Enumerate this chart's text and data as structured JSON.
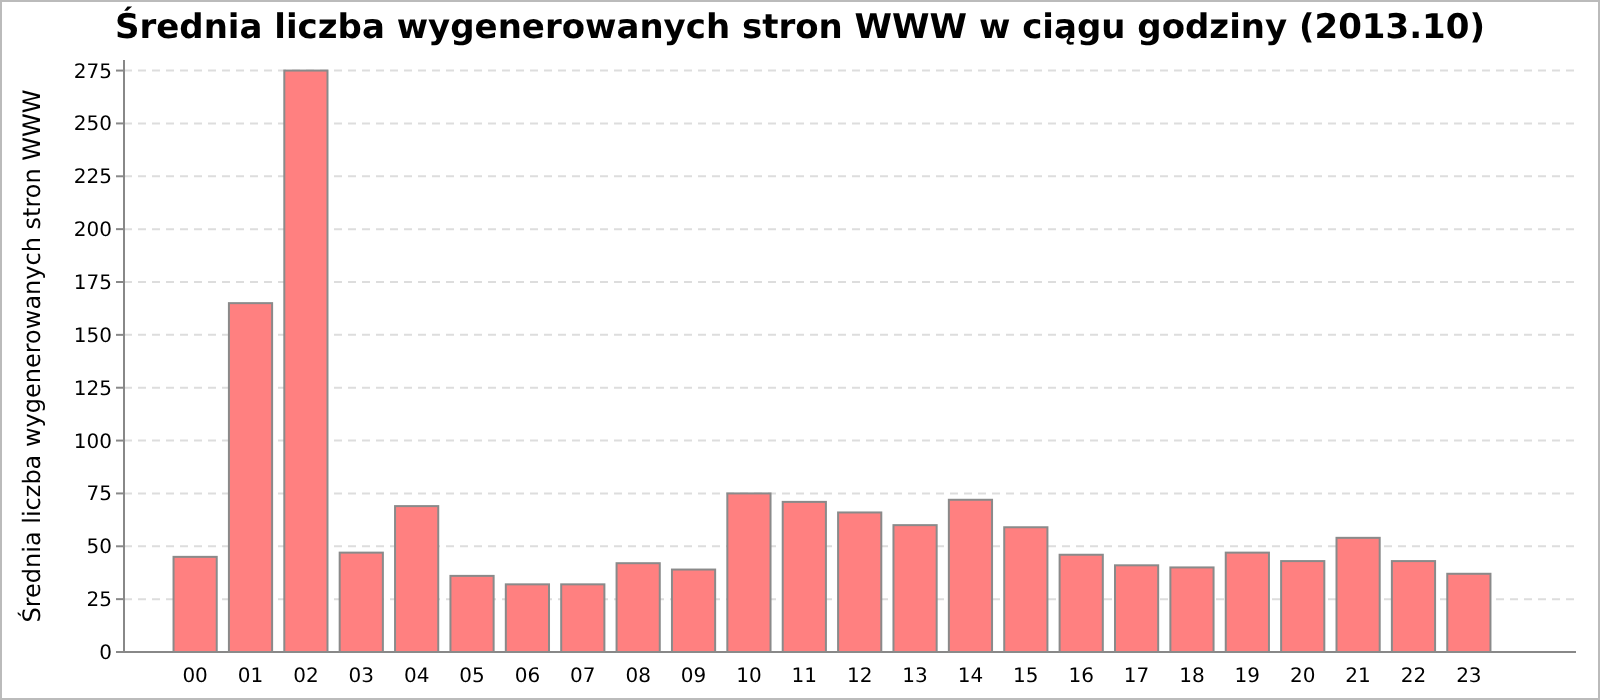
{
  "chart_data": {
    "type": "bar",
    "title": "Średnia liczba wygenerowanych stron WWW w ciągu godziny (2013.10)",
    "ylabel": "Średnia liczba wygenerowanych stron WWW",
    "categories": [
      "00",
      "01",
      "02",
      "03",
      "04",
      "05",
      "06",
      "07",
      "08",
      "09",
      "10",
      "11",
      "12",
      "13",
      "14",
      "15",
      "16",
      "17",
      "18",
      "19",
      "20",
      "21",
      "22",
      "23"
    ],
    "values": [
      45,
      165,
      275,
      47,
      69,
      36,
      32,
      32,
      42,
      39,
      75,
      71,
      66,
      60,
      72,
      59,
      46,
      41,
      40,
      47,
      43,
      54,
      43,
      37
    ],
    "color": "#ff8080",
    "ylim": [
      0,
      280
    ],
    "yticks": [
      0,
      25,
      50,
      75,
      100,
      125,
      150,
      175,
      200,
      225,
      250,
      275
    ],
    "grid": "y"
  }
}
